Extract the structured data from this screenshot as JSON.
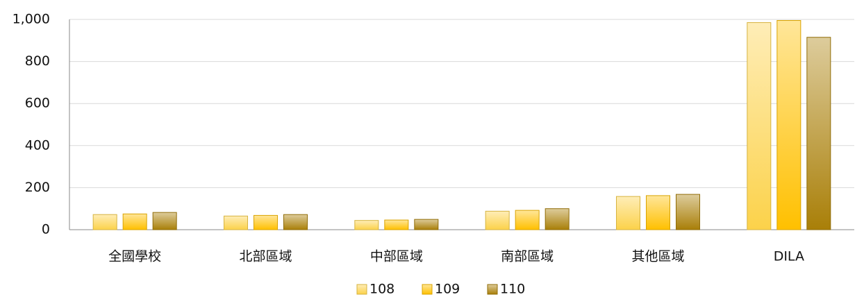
{
  "chart_data": {
    "type": "bar",
    "categories": [
      "全國學校",
      "北部區域",
      "中部區域",
      "南部區域",
      "其他區域",
      "DILA"
    ],
    "series": [
      {
        "name": "108",
        "color": "#fcd24a",
        "values": [
          72,
          65,
          44,
          88,
          158,
          985
        ]
      },
      {
        "name": "109",
        "color": "#ffc000",
        "values": [
          75,
          68,
          46,
          92,
          162,
          995
        ]
      },
      {
        "name": "110",
        "color": "#a97f08",
        "values": [
          82,
          72,
          49,
          100,
          168,
          915
        ]
      }
    ],
    "ylim": [
      0,
      1000
    ],
    "yticks": [
      0,
      200,
      400,
      600,
      800,
      {
        "value": 1000,
        "label": "1,000"
      }
    ],
    "grid": true,
    "legend": "bottom"
  }
}
